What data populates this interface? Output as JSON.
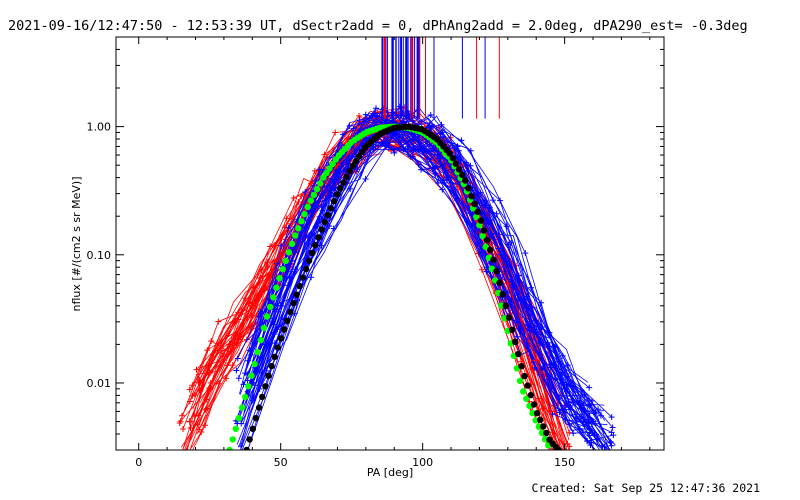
{
  "window": {
    "title": "2021-09-16/12:47:50 - 12:53:39 UT, dSectr2add = 0, dPhAng2add = 2.0deg, dPA290_est= -0.3deg",
    "created": "Created: Sat Sep 25 12:47:36 2021"
  },
  "colors": {
    "background": "#ffffff",
    "axes": "#000000",
    "series_red": "#ff0000",
    "series_blue": "#0000ff",
    "fit_green": "#00ff00",
    "fit_black": "#000000"
  },
  "chart_data": {
    "type": "line",
    "title": "2021-09-16/12:47:50 - 12:53:39 UT, dSectr2add = 0, dPhAng2add = 2.0deg, dPA290_est= -0.3deg",
    "xlabel": "PA [deg]",
    "ylabel": "nflux [#/(cm2 s sr MeV)]",
    "xlim": [
      -8,
      185
    ],
    "ylim": [
      0.003,
      5.0
    ],
    "yscale": "log",
    "grid": false,
    "x_ticks": [
      0,
      50,
      100,
      150
    ],
    "x_tick_labels": [
      "0",
      "50",
      "100",
      "150"
    ],
    "y_ticks": [
      0.01,
      0.1,
      1.0
    ],
    "y_tick_labels": [
      "0.01",
      "0.10",
      "1.00"
    ],
    "series": [
      {
        "color": "red",
        "marker": "plus",
        "style": "line",
        "x": [
          18,
          25,
          32,
          40,
          50,
          60,
          70,
          80,
          90,
          100,
          110,
          120,
          130,
          140,
          145
        ],
        "y": [
          0.005,
          0.012,
          0.02,
          0.04,
          0.1,
          0.25,
          0.5,
          0.85,
          1.0,
          0.85,
          0.5,
          0.2,
          0.06,
          0.015,
          0.006
        ]
      },
      {
        "color": "blue",
        "marker": "plus",
        "style": "line",
        "x": [
          38,
          45,
          50,
          60,
          70,
          80,
          90,
          100,
          110,
          120,
          130,
          140,
          150,
          160
        ],
        "y": [
          0.008,
          0.02,
          0.04,
          0.14,
          0.4,
          0.8,
          1.0,
          0.85,
          0.5,
          0.22,
          0.08,
          0.025,
          0.009,
          0.005
        ]
      },
      {
        "color": "green",
        "marker": "dot",
        "style": "fit",
        "x": [
          32,
          36,
          40,
          45,
          50,
          55,
          60,
          65,
          70,
          75,
          80,
          85,
          90,
          95,
          100,
          105,
          110,
          115,
          120,
          125,
          130,
          135,
          140,
          145
        ],
        "y": [
          0.003,
          0.006,
          0.012,
          0.032,
          0.07,
          0.14,
          0.25,
          0.4,
          0.58,
          0.76,
          0.9,
          0.98,
          1.0,
          0.98,
          0.9,
          0.75,
          0.55,
          0.34,
          0.17,
          0.07,
          0.025,
          0.009,
          0.005,
          0.003
        ]
      },
      {
        "color": "black",
        "marker": "dot",
        "style": "fit",
        "x": [
          38,
          42,
          46,
          50,
          55,
          60,
          65,
          70,
          75,
          80,
          85,
          90,
          95,
          100,
          105,
          110,
          115,
          120,
          125,
          130,
          135,
          140,
          145,
          148
        ],
        "y": [
          0.003,
          0.006,
          0.012,
          0.022,
          0.045,
          0.09,
          0.17,
          0.3,
          0.48,
          0.7,
          0.88,
          0.98,
          1.0,
          0.95,
          0.8,
          0.6,
          0.38,
          0.2,
          0.09,
          0.035,
          0.013,
          0.006,
          0.0035,
          0.003
        ]
      }
    ]
  }
}
